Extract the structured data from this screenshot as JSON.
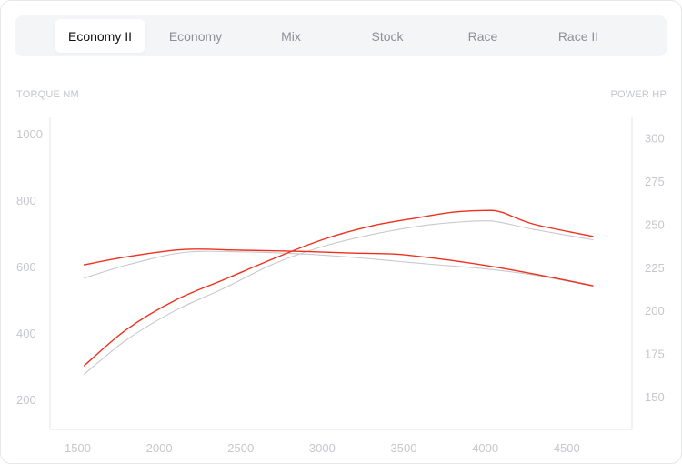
{
  "tabs": [
    {
      "label": "Economy II",
      "active": true
    },
    {
      "label": "Economy",
      "active": false
    },
    {
      "label": "Mix",
      "active": false
    },
    {
      "label": "Stock",
      "active": false
    },
    {
      "label": "Race",
      "active": false
    },
    {
      "label": "Race II",
      "active": false
    }
  ],
  "colors": {
    "accent": "#f0301e",
    "baseline": "#c8c9cd",
    "grid": "#e3e4e7",
    "tick": "#c5c7cc"
  },
  "chart_data": {
    "type": "line",
    "y_left_label": "TORQUE NM",
    "y_right_label": "POWER HP",
    "x_ticks": [
      1500,
      2000,
      2500,
      3000,
      3500,
      4000,
      4500
    ],
    "y_left_ticks": [
      200,
      400,
      600,
      800,
      1000
    ],
    "y_right_ticks": [
      150,
      175,
      200,
      225,
      250,
      275,
      300
    ],
    "xlim": [
      1330,
      4900
    ],
    "y_left_lim": [
      110,
      1050
    ],
    "y_right_lim": [
      131,
      312
    ],
    "grid": false,
    "series": [
      {
        "metric": "torque",
        "axis": "left",
        "variant": "tuned",
        "x": [
          1540,
          1800,
          2150,
          2500,
          2900,
          3200,
          3450,
          3700,
          4000,
          4300,
          4660
        ],
        "y": [
          606,
          630,
          652,
          650,
          646,
          641,
          638,
          625,
          604,
          578,
          543
        ]
      },
      {
        "metric": "torque",
        "axis": "left",
        "variant": "stock",
        "x": [
          1540,
          1800,
          2150,
          2500,
          2900,
          3200,
          3450,
          3700,
          4000,
          4300,
          4660
        ],
        "y": [
          566,
          605,
          643,
          645,
          638,
          628,
          617,
          606,
          594,
          575,
          542
        ]
      },
      {
        "metric": "power",
        "axis": "right",
        "variant": "tuned",
        "x": [
          1540,
          1800,
          2100,
          2400,
          2700,
          3000,
          3300,
          3600,
          3800,
          4000,
          4100,
          4300,
          4660
        ],
        "y": [
          168,
          189,
          206,
          218,
          230,
          241,
          249,
          254,
          257,
          258,
          257,
          250,
          243
        ]
      },
      {
        "metric": "power",
        "axis": "right",
        "variant": "stock",
        "x": [
          1540,
          1800,
          2100,
          2400,
          2700,
          3000,
          3300,
          3600,
          3800,
          4000,
          4100,
          4300,
          4660
        ],
        "y": [
          163,
          183,
          200,
          213,
          227,
          237,
          244,
          249,
          251,
          252,
          251,
          247,
          241
        ]
      }
    ]
  }
}
